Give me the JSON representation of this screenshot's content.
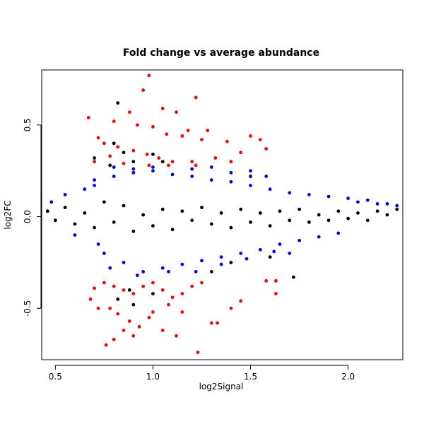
{
  "chart_data": {
    "type": "scatter",
    "title": "Fold change vs average abundance",
    "xlabel": "log2Signal",
    "ylabel": "log2FC",
    "xlim": [
      0.43,
      2.28
    ],
    "ylim": [
      -0.78,
      0.8
    ],
    "x_ticks": [
      0.5,
      1.0,
      1.5,
      2.0
    ],
    "x_tick_labels": [
      "0.5",
      "1.0",
      "1.5",
      "2.0"
    ],
    "y_ticks": [
      -0.5,
      0.0,
      0.5
    ],
    "y_tick_labels": [
      "-0.5",
      "0.0",
      "0.5"
    ],
    "grid": false,
    "legend": "none",
    "series": [
      {
        "color": "#000000",
        "points": [
          [
            0.46,
            0.03
          ],
          [
            0.5,
            -0.02
          ],
          [
            0.55,
            0.05
          ],
          [
            0.6,
            -0.04
          ],
          [
            0.65,
            0.02
          ],
          [
            0.7,
            -0.06
          ],
          [
            0.75,
            0.08
          ],
          [
            0.8,
            -0.03
          ],
          [
            0.85,
            0.06
          ],
          [
            0.9,
            -0.08
          ],
          [
            0.95,
            0.01
          ],
          [
            1.0,
            -0.05
          ],
          [
            1.05,
            0.04
          ],
          [
            1.1,
            -0.07
          ],
          [
            1.15,
            0.03
          ],
          [
            1.2,
            -0.02
          ],
          [
            1.25,
            0.05
          ],
          [
            1.3,
            -0.04
          ],
          [
            1.35,
            0.02
          ],
          [
            1.4,
            -0.06
          ],
          [
            1.45,
            0.04
          ],
          [
            1.5,
            -0.03
          ],
          [
            1.55,
            0.02
          ],
          [
            1.6,
            -0.05
          ],
          [
            1.65,
            0.03
          ],
          [
            1.7,
            -0.02
          ],
          [
            1.75,
            0.04
          ],
          [
            1.8,
            -0.03
          ],
          [
            1.85,
            0.01
          ],
          [
            1.9,
            -0.02
          ],
          [
            1.95,
            0.03
          ],
          [
            2.0,
            -0.01
          ],
          [
            2.05,
            0.02
          ],
          [
            2.1,
            -0.02
          ],
          [
            2.15,
            0.03
          ],
          [
            2.2,
            0.01
          ],
          [
            2.25,
            0.04
          ],
          [
            0.82,
            0.62
          ],
          [
            0.8,
            0.4
          ],
          [
            0.85,
            0.35
          ],
          [
            0.78,
            0.28
          ],
          [
            0.9,
            0.3
          ],
          [
            0.88,
            -0.4
          ],
          [
            0.82,
            -0.45
          ],
          [
            0.9,
            -0.48
          ],
          [
            1.0,
            -0.42
          ],
          [
            1.3,
            -0.3
          ],
          [
            1.4,
            -0.25
          ],
          [
            1.6,
            -0.22
          ],
          [
            1.72,
            -0.33
          ],
          [
            1.5,
            0.22
          ],
          [
            1.05,
            0.3
          ],
          [
            1.0,
            0.34
          ],
          [
            0.7,
            0.32
          ]
        ]
      },
      {
        "color": "#0000ff",
        "points": [
          [
            0.48,
            0.08
          ],
          [
            0.55,
            0.12
          ],
          [
            0.6,
            -0.1
          ],
          [
            0.65,
            0.15
          ],
          [
            0.7,
            0.2
          ],
          [
            0.75,
            -0.2
          ],
          [
            0.8,
            0.22
          ],
          [
            0.85,
            -0.25
          ],
          [
            0.9,
            0.24
          ],
          [
            0.95,
            -0.3
          ],
          [
            1.0,
            0.25
          ],
          [
            1.05,
            -0.28
          ],
          [
            1.1,
            0.23
          ],
          [
            1.15,
            -0.26
          ],
          [
            1.2,
            0.22
          ],
          [
            1.25,
            -0.24
          ],
          [
            1.3,
            0.2
          ],
          [
            1.35,
            -0.22
          ],
          [
            1.4,
            0.19
          ],
          [
            1.45,
            -0.2
          ],
          [
            1.5,
            0.17
          ],
          [
            1.55,
            -0.18
          ],
          [
            1.6,
            0.15
          ],
          [
            1.65,
            -0.15
          ],
          [
            1.7,
            0.13
          ],
          [
            1.75,
            -0.13
          ],
          [
            1.8,
            0.12
          ],
          [
            1.85,
            -0.11
          ],
          [
            1.9,
            0.11
          ],
          [
            1.95,
            -0.09
          ],
          [
            2.0,
            0.1
          ],
          [
            2.05,
            0.08
          ],
          [
            2.1,
            0.09
          ],
          [
            2.15,
            0.07
          ],
          [
            2.2,
            0.07
          ],
          [
            2.25,
            0.06
          ],
          [
            0.72,
            -0.15
          ],
          [
            0.78,
            -0.28
          ],
          [
            0.92,
            -0.32
          ],
          [
            1.08,
            -0.3
          ],
          [
            1.22,
            -0.3
          ],
          [
            1.35,
            -0.26
          ],
          [
            1.48,
            -0.23
          ],
          [
            1.62,
            -0.19
          ],
          [
            1.7,
            -0.2
          ],
          [
            1.5,
            0.25
          ],
          [
            1.58,
            0.22
          ],
          [
            1.4,
            0.24
          ],
          [
            1.3,
            0.27
          ],
          [
            1.2,
            0.26
          ],
          [
            1.0,
            0.27
          ],
          [
            0.9,
            0.26
          ],
          [
            0.8,
            0.27
          ],
          [
            0.7,
            0.17
          ]
        ]
      },
      {
        "color": "#ff0000",
        "points": [
          [
            0.98,
            0.77
          ],
          [
            0.95,
            0.69
          ],
          [
            1.22,
            0.65
          ],
          [
            1.05,
            0.59
          ],
          [
            1.12,
            0.57
          ],
          [
            0.88,
            0.57
          ],
          [
            0.67,
            0.54
          ],
          [
            0.8,
            0.52
          ],
          [
            0.92,
            0.5
          ],
          [
            1.0,
            0.49
          ],
          [
            1.18,
            0.47
          ],
          [
            1.28,
            0.47
          ],
          [
            1.07,
            0.45
          ],
          [
            1.15,
            0.44
          ],
          [
            1.25,
            0.42
          ],
          [
            1.38,
            0.41
          ],
          [
            1.5,
            0.44
          ],
          [
            1.55,
            0.42
          ],
          [
            1.58,
            0.37
          ],
          [
            1.45,
            0.35
          ],
          [
            1.4,
            0.3
          ],
          [
            1.32,
            0.32
          ],
          [
            0.72,
            0.43
          ],
          [
            0.75,
            0.4
          ],
          [
            0.82,
            0.38
          ],
          [
            0.9,
            0.36
          ],
          [
            0.97,
            0.34
          ],
          [
            1.03,
            0.32
          ],
          [
            1.1,
            0.3
          ],
          [
            1.2,
            0.3
          ],
          [
            0.78,
            0.33
          ],
          [
            0.7,
            0.3
          ],
          [
            0.85,
            0.29
          ],
          [
            0.98,
            0.28
          ],
          [
            1.08,
            0.28
          ],
          [
            1.22,
            0.28
          ],
          [
            0.75,
            -0.36
          ],
          [
            0.8,
            -0.38
          ],
          [
            0.85,
            -0.4
          ],
          [
            0.9,
            -0.42
          ],
          [
            0.95,
            -0.38
          ],
          [
            1.0,
            -0.36
          ],
          [
            1.05,
            -0.4
          ],
          [
            1.1,
            -0.44
          ],
          [
            1.15,
            -0.42
          ],
          [
            1.2,
            -0.38
          ],
          [
            1.25,
            -0.36
          ],
          [
            0.7,
            -0.39
          ],
          [
            0.78,
            -0.5
          ],
          [
            0.82,
            -0.53
          ],
          [
            0.88,
            -0.57
          ],
          [
            0.93,
            -0.6
          ],
          [
            1.0,
            -0.52
          ],
          [
            1.08,
            -0.48
          ],
          [
            1.15,
            -0.52
          ],
          [
            1.3,
            -0.58
          ],
          [
            1.33,
            -0.58
          ],
          [
            1.12,
            -0.65
          ],
          [
            0.9,
            -0.65
          ],
          [
            0.8,
            -0.67
          ],
          [
            0.76,
            -0.7
          ],
          [
            1.23,
            -0.74
          ],
          [
            0.85,
            -0.62
          ],
          [
            1.58,
            -0.35
          ],
          [
            1.63,
            -0.35
          ],
          [
            1.63,
            -0.42
          ],
          [
            1.45,
            -0.46
          ],
          [
            1.4,
            -0.5
          ],
          [
            0.68,
            -0.45
          ],
          [
            0.72,
            -0.5
          ],
          [
            0.98,
            -0.55
          ],
          [
            1.05,
            -0.62
          ]
        ]
      }
    ]
  }
}
